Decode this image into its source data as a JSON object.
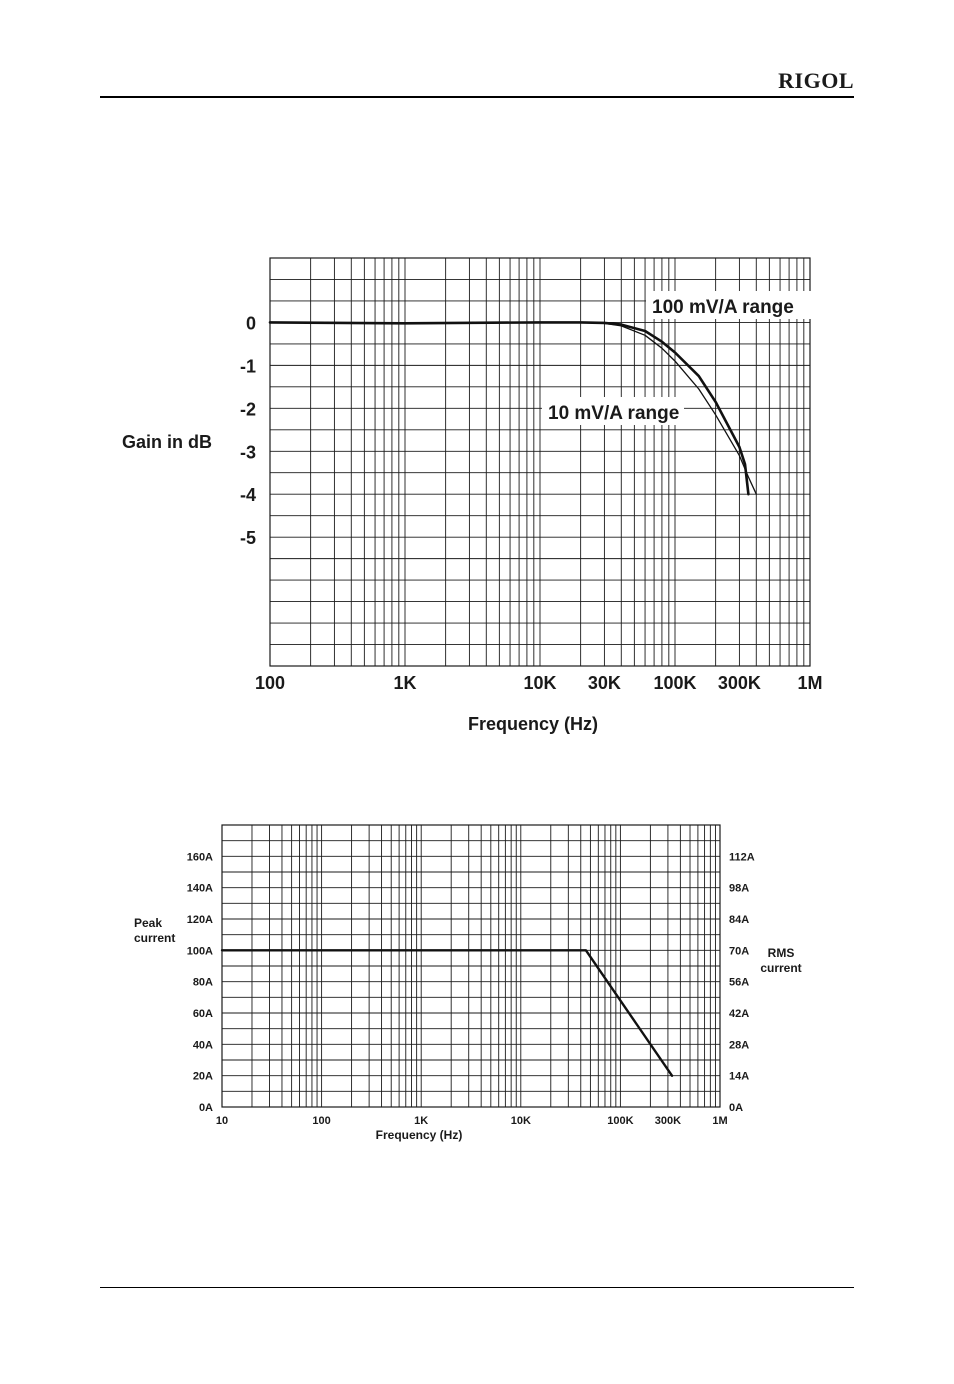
{
  "header": {
    "brand": "RIGOL"
  },
  "chart_data": [
    {
      "type": "line",
      "x_scale": "log",
      "xlim": [
        100,
        1000000
      ],
      "ylim": [
        -8,
        1.5
      ],
      "grid": true,
      "xlabel": "Frequency (Hz)",
      "ylabel": "Gain in dB",
      "x_ticks": [
        {
          "value": 100,
          "label": "100"
        },
        {
          "value": 1000,
          "label": "1K"
        },
        {
          "value": 10000,
          "label": "10K"
        },
        {
          "value": 30000,
          "label": "30K"
        },
        {
          "value": 100000,
          "label": "100K"
        },
        {
          "value": 300000,
          "label": "300K"
        },
        {
          "value": 1000000,
          "label": "1M"
        }
      ],
      "y_ticks": [
        {
          "value": 0,
          "label": "0"
        },
        {
          "value": -1,
          "label": "-1"
        },
        {
          "value": -2,
          "label": "-2"
        },
        {
          "value": -3,
          "label": "-3"
        },
        {
          "value": -4,
          "label": "-4"
        },
        {
          "value": -5,
          "label": "-5"
        }
      ],
      "series": [
        {
          "name": "100 mV/A range",
          "x": [
            100,
            1000,
            10000,
            20000,
            30000,
            40000,
            60000,
            80000,
            100000,
            150000,
            200000,
            300000,
            350000,
            400000
          ],
          "y": [
            0,
            -0.02,
            0,
            0,
            -0.02,
            -0.08,
            -0.3,
            -0.6,
            -0.9,
            -1.55,
            -2.15,
            -3.1,
            -3.6,
            -4.0
          ]
        },
        {
          "name": "10 mV/A range",
          "x": [
            100,
            1000,
            10000,
            20000,
            30000,
            40000,
            60000,
            80000,
            100000,
            150000,
            200000,
            300000,
            330000,
            350000
          ],
          "y": [
            0,
            -0.02,
            0,
            0,
            -0.01,
            -0.05,
            -0.2,
            -0.45,
            -0.7,
            -1.25,
            -1.85,
            -2.9,
            -3.3,
            -4.0
          ]
        }
      ]
    },
    {
      "type": "line",
      "x_scale": "log",
      "xlim": [
        10,
        1000000
      ],
      "ylim": [
        0,
        180
      ],
      "grid": true,
      "xlabel": "Frequency (Hz)",
      "ylabel": "Peak current",
      "y2label": "RMS current",
      "x_ticks": [
        {
          "value": 10,
          "label": "10"
        },
        {
          "value": 100,
          "label": "100"
        },
        {
          "value": 1000,
          "label": "1K"
        },
        {
          "value": 10000,
          "label": "10K"
        },
        {
          "value": 100000,
          "label": "100K"
        },
        {
          "value": 300000,
          "label": "300K"
        },
        {
          "value": 1000000,
          "label": "1M"
        }
      ],
      "y_ticks": [
        {
          "value": 0,
          "label": "0A"
        },
        {
          "value": 20,
          "label": "20A"
        },
        {
          "value": 40,
          "label": "40A"
        },
        {
          "value": 60,
          "label": "60A"
        },
        {
          "value": 80,
          "label": "80A"
        },
        {
          "value": 100,
          "label": "100A"
        },
        {
          "value": 120,
          "label": "120A"
        },
        {
          "value": 140,
          "label": "140A"
        },
        {
          "value": 160,
          "label": "160A"
        }
      ],
      "y2_ticks": [
        {
          "value": 0,
          "label": "0A"
        },
        {
          "value": 20,
          "label": "14A"
        },
        {
          "value": 40,
          "label": "28A"
        },
        {
          "value": 60,
          "label": "42A"
        },
        {
          "value": 80,
          "label": "56A"
        },
        {
          "value": 100,
          "label": "70A"
        },
        {
          "value": 120,
          "label": "84A"
        },
        {
          "value": 140,
          "label": "98A"
        },
        {
          "value": 160,
          "label": "112A"
        }
      ],
      "series": [
        {
          "x": [
            10,
            45000,
            330000
          ],
          "y": [
            100,
            100,
            20
          ]
        }
      ]
    }
  ]
}
